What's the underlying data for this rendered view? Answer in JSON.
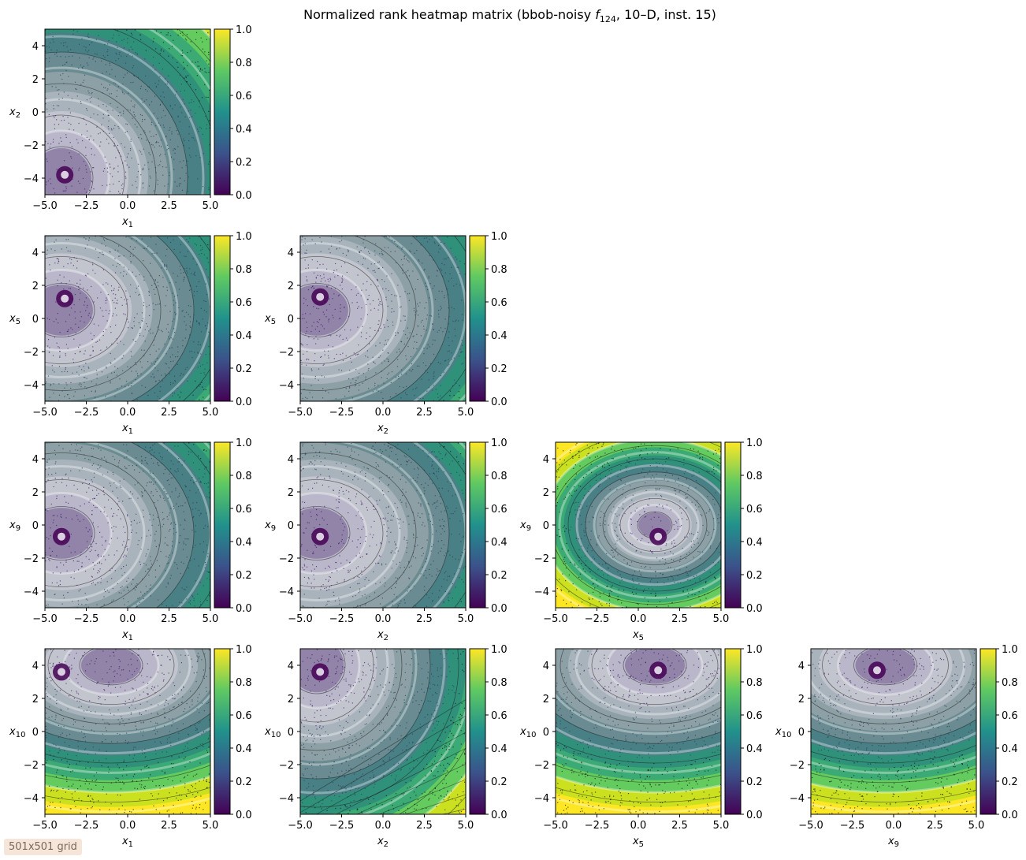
{
  "chart_data": {
    "type": "heatmap",
    "title": "Normalized rank heatmap matrix (bbob-noisy f124, 10–D, inst. 15)",
    "title_parts": {
      "before": "Normalized rank heatmap matrix (bbob-noisy ",
      "fn": "f",
      "fn_sub": "124",
      "after": ", 10–D, inst. 15)"
    },
    "xlim": [
      -5.0,
      5.0
    ],
    "ylim": [
      -5.0,
      5.0
    ],
    "x_ticks": [
      "−5.0",
      "−2.5",
      "0.0",
      "2.5",
      "5.0"
    ],
    "x_tick_values": [
      -5.0,
      -2.5,
      0.0,
      2.5,
      5.0
    ],
    "y_ticks": [
      "−4",
      "−2",
      "0",
      "2",
      "4"
    ],
    "y_tick_values": [
      -4,
      -2,
      0,
      2,
      4
    ],
    "colorbar": {
      "range": [
        0.0,
        1.0
      ],
      "ticks": [
        "0.0",
        "0.2",
        "0.4",
        "0.6",
        "0.8",
        "1.0"
      ],
      "tick_values": [
        0.0,
        0.2,
        0.4,
        0.6,
        0.8,
        1.0
      ],
      "colormap": "viridis",
      "colors": [
        "#440154",
        "#3b528b",
        "#21918c",
        "#5ec962",
        "#fde725"
      ]
    },
    "panels": [
      {
        "row": 0,
        "col": 0,
        "x": "x1",
        "y": "x2",
        "xsub": "1",
        "ysub": "2",
        "minimum": [
          -3.8,
          -3.8
        ],
        "center": [
          -4.0,
          -4.0
        ],
        "direction": "diagonal"
      },
      {
        "row": 1,
        "col": 0,
        "x": "x1",
        "y": "x5",
        "xsub": "1",
        "ysub": "5",
        "minimum": [
          -3.8,
          1.2
        ],
        "center": [
          -4.0,
          0.5
        ],
        "direction": "x"
      },
      {
        "row": 1,
        "col": 1,
        "x": "x2",
        "y": "x5",
        "xsub": "2",
        "ysub": "5",
        "minimum": [
          -3.8,
          1.3
        ],
        "center": [
          -4.0,
          0.5
        ],
        "direction": "x"
      },
      {
        "row": 2,
        "col": 0,
        "x": "x1",
        "y": "x9",
        "xsub": "1",
        "ysub": "9",
        "minimum": [
          -4.0,
          -0.7
        ],
        "center": [
          -4.0,
          -0.5
        ],
        "direction": "x"
      },
      {
        "row": 2,
        "col": 1,
        "x": "x2",
        "y": "x9",
        "xsub": "2",
        "ysub": "9",
        "minimum": [
          -3.8,
          -0.7
        ],
        "center": [
          -4.0,
          -0.5
        ],
        "direction": "x"
      },
      {
        "row": 2,
        "col": 2,
        "x": "x5",
        "y": "x9",
        "xsub": "5",
        "ysub": "9",
        "minimum": [
          1.2,
          -0.7
        ],
        "center": [
          1.0,
          0.0
        ],
        "direction": "radial"
      },
      {
        "row": 3,
        "col": 0,
        "x": "x1",
        "y": "x10",
        "xsub": "1",
        "ysub": "10",
        "minimum": [
          -4.0,
          3.6
        ],
        "center": [
          -1.0,
          4.0
        ],
        "direction": "y"
      },
      {
        "row": 3,
        "col": 1,
        "x": "x2",
        "y": "x10",
        "xsub": "2",
        "ysub": "10",
        "minimum": [
          -3.8,
          3.6
        ],
        "center": [
          -4.0,
          4.0
        ],
        "direction": "diagonal2"
      },
      {
        "row": 3,
        "col": 2,
        "x": "x5",
        "y": "x10",
        "xsub": "5",
        "ysub": "10",
        "minimum": [
          1.2,
          3.7
        ],
        "center": [
          1.0,
          4.0
        ],
        "direction": "y"
      },
      {
        "row": 3,
        "col": 3,
        "x": "x9",
        "y": "x10",
        "xsub": "9",
        "ysub": "10",
        "minimum": [
          -1.0,
          3.7
        ],
        "center": [
          -0.5,
          4.0
        ],
        "direction": "y"
      }
    ]
  },
  "grid_note": "501x501 grid"
}
